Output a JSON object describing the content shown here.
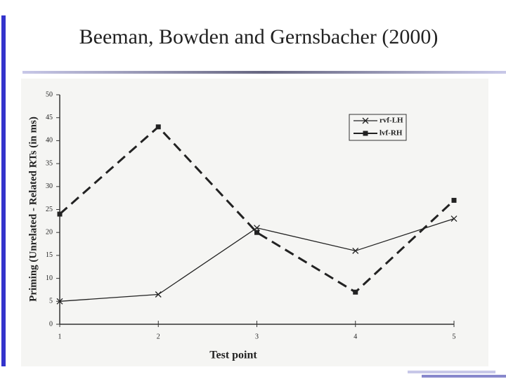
{
  "chart_data": {
    "type": "line",
    "title": "Beeman, Bowden and Gernsbacher (2000)",
    "x_label": "Test point",
    "y_label": "Priming (Unrelated - Related RTs (in ms)",
    "x": [
      1,
      2,
      3,
      4,
      5
    ],
    "xlim": [
      1,
      5
    ],
    "xticks": [
      1,
      2,
      3,
      4,
      5
    ],
    "ylim": [
      0,
      50
    ],
    "yticks": [
      0,
      5,
      10,
      15,
      20,
      25,
      30,
      35,
      40,
      45,
      50
    ],
    "legend": "upper right",
    "series": [
      {
        "name": "rvf-LH",
        "color": "#222222",
        "linestyle": "solid",
        "marker": "x",
        "values": [
          5,
          6.5,
          21,
          16,
          23
        ]
      },
      {
        "name": "lvf-RH",
        "color": "#222222",
        "linestyle": "dashed",
        "marker": "square",
        "values": [
          24,
          43,
          20,
          7,
          27
        ]
      }
    ]
  }
}
